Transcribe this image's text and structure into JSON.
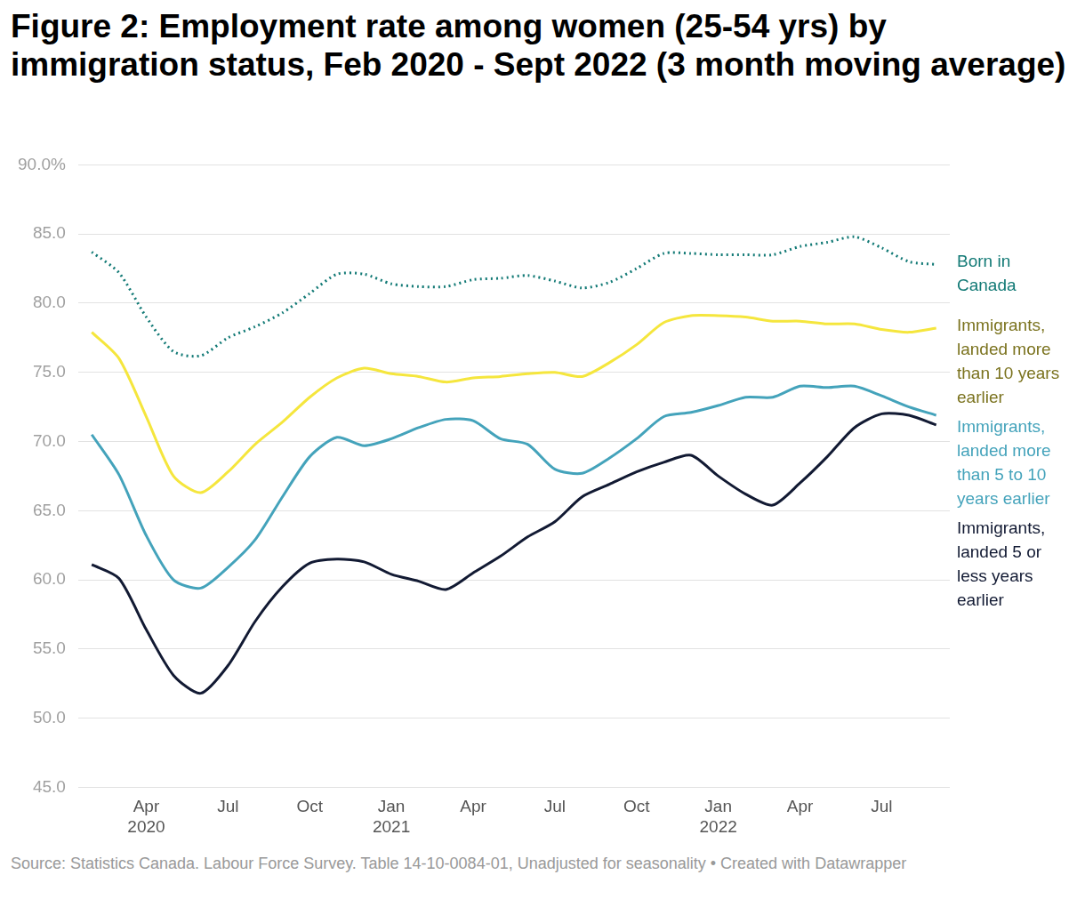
{
  "chart_data": {
    "type": "line",
    "title": "Figure 2: Employment rate among women (25-54 yrs) by immigration status, Feb 2020 - Sept 2022 (3 month moving average)",
    "source": "Source: Statistics Canada. Labour Force Survey. Table 14-10-0084-01, Unadjusted for seasonality • Created with Datawrapper",
    "categories": [
      null,
      null,
      "Apr 2020",
      null,
      null,
      "Jul",
      null,
      null,
      "Oct",
      null,
      null,
      "Jan 2021",
      null,
      null,
      "Apr",
      null,
      null,
      "Jul",
      null,
      null,
      "Oct",
      null,
      null,
      "Jan 2022",
      null,
      null,
      "Apr",
      null,
      null,
      "Jul",
      null,
      null
    ],
    "ylim": [
      45,
      90
    ],
    "yticks": [
      {
        "value": 45,
        "label": "45.0"
      },
      {
        "value": 50,
        "label": "50.0"
      },
      {
        "value": 55,
        "label": "55.0"
      },
      {
        "value": 60,
        "label": "60.0"
      },
      {
        "value": 65,
        "label": "65.0"
      },
      {
        "value": 70,
        "label": "70.0"
      },
      {
        "value": 75,
        "label": "75.0"
      },
      {
        "value": 80,
        "label": "80.0"
      },
      {
        "value": 85,
        "label": "85.0"
      },
      {
        "value": 90,
        "label": "90.0%"
      }
    ],
    "grid": true,
    "series": [
      {
        "name": "Born in Canada",
        "color": "#137a76",
        "line_style": "dotted",
        "values": [
          83.7,
          82.2,
          79.0,
          76.5,
          76.2,
          77.5,
          78.3,
          79.3,
          80.7,
          82.1,
          82.1,
          81.4,
          81.2,
          81.2,
          81.7,
          81.8,
          82.0,
          81.6,
          81.1,
          81.5,
          82.5,
          83.6,
          83.6,
          83.5,
          83.5,
          83.5,
          84.1,
          84.4,
          84.8,
          84.0,
          83.0,
          82.8
        ]
      },
      {
        "name": "Immigrants, landed more than 10 years earlier",
        "color": "#f5e63d",
        "line_style": "solid",
        "values": [
          77.9,
          76.0,
          71.8,
          67.5,
          66.3,
          67.8,
          69.8,
          71.4,
          73.2,
          74.6,
          75.3,
          74.9,
          74.7,
          74.3,
          74.6,
          74.7,
          74.9,
          75.0,
          74.7,
          75.7,
          77.0,
          78.6,
          79.1,
          79.1,
          79.0,
          78.7,
          78.7,
          78.5,
          78.5,
          78.1,
          77.9,
          78.2
        ]
      },
      {
        "name": "Immigrants, landed more than 5 to 10 years earlier",
        "color": "#44a3bb",
        "line_style": "solid",
        "values": [
          70.5,
          67.6,
          63.2,
          60.0,
          59.4,
          60.9,
          62.9,
          66.0,
          68.9,
          70.3,
          69.7,
          70.2,
          71.0,
          71.6,
          71.5,
          70.2,
          69.8,
          68.0,
          67.7,
          68.8,
          70.2,
          71.8,
          72.1,
          72.6,
          73.2,
          73.2,
          74.0,
          73.9,
          74.0,
          73.3,
          72.5,
          71.9
        ]
      },
      {
        "name": "Immigrants, landed 5 or less years earlier",
        "color": "#121a33",
        "line_style": "solid",
        "values": [
          61.1,
          60.1,
          56.4,
          53.1,
          51.8,
          53.8,
          57.0,
          59.5,
          61.2,
          61.5,
          61.3,
          60.4,
          59.9,
          59.3,
          60.5,
          61.7,
          63.1,
          64.2,
          66.0,
          66.9,
          67.8,
          68.5,
          69.0,
          67.5,
          66.2,
          65.4,
          67.0,
          68.9,
          71.0,
          72.0,
          71.9,
          71.2
        ]
      }
    ]
  }
}
